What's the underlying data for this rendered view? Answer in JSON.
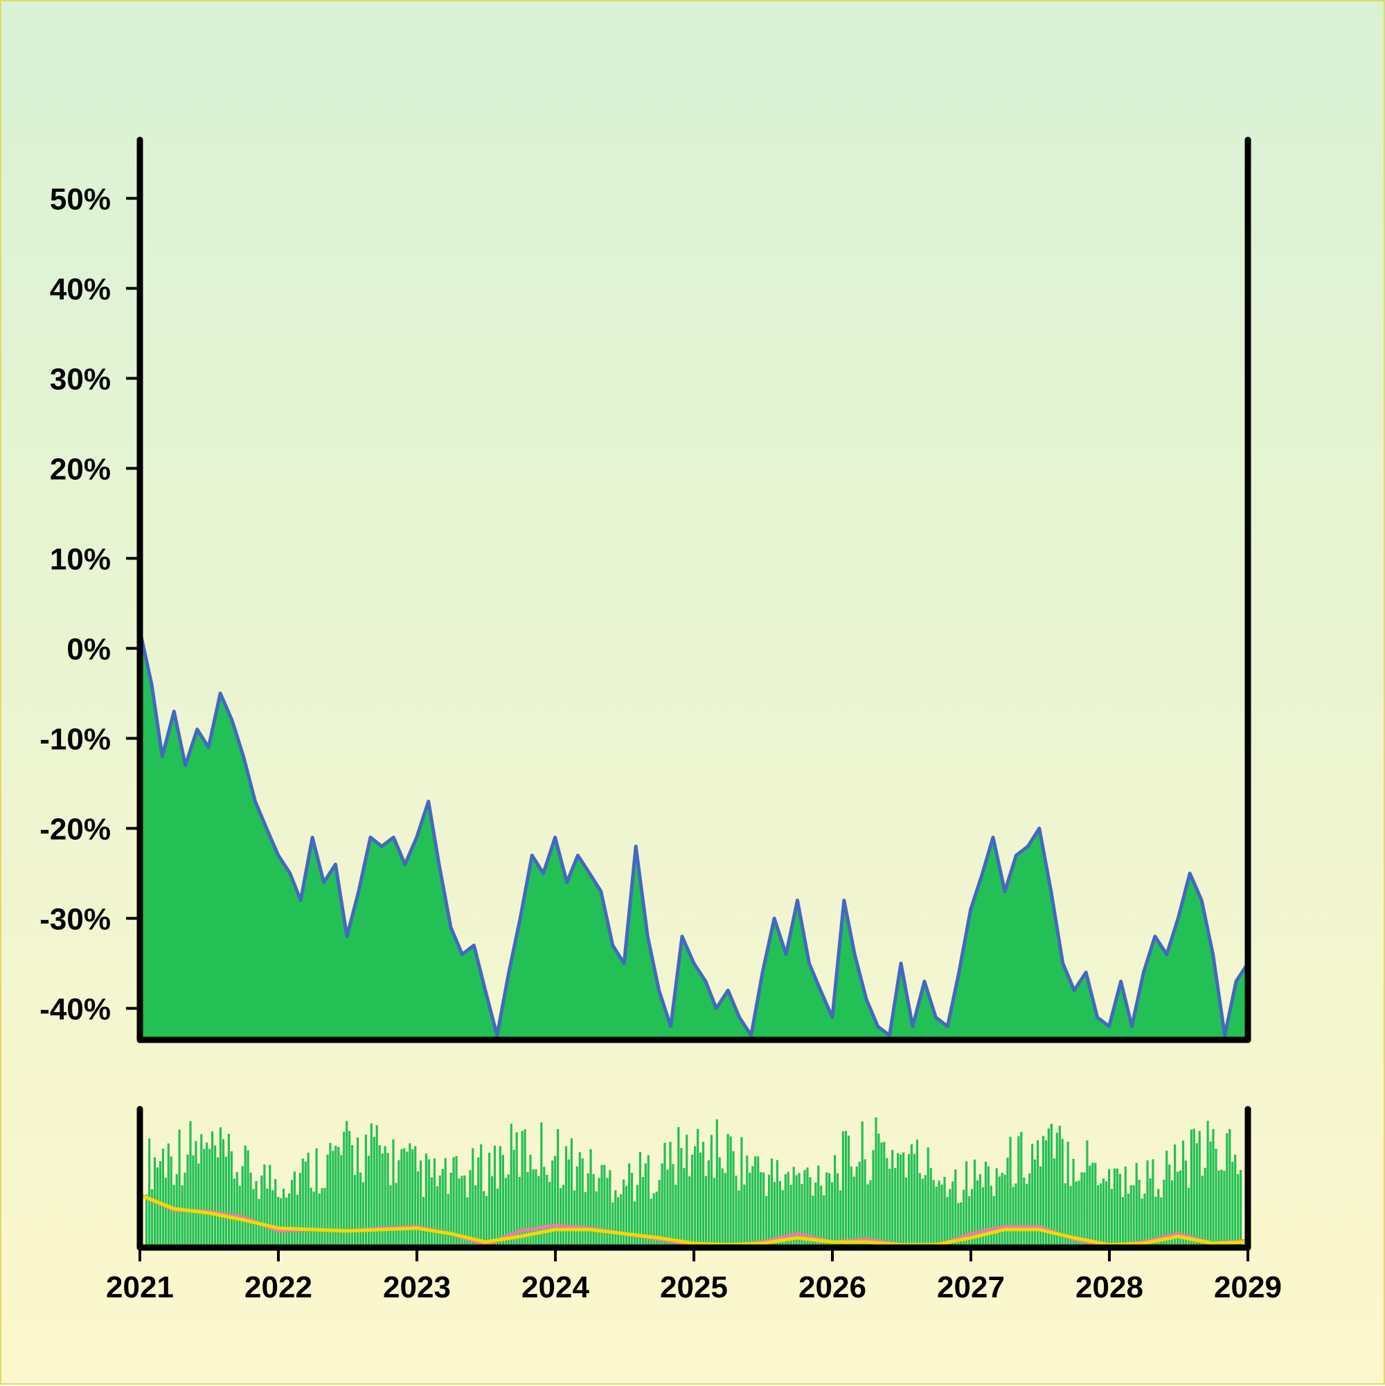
{
  "chart_data": {
    "type": "area",
    "title": "",
    "xlabel": "",
    "ylabel": "",
    "x_range": [
      "2021-01-01",
      "2029-01-01"
    ],
    "x_ticks": [
      "2021",
      "2022",
      "2023",
      "2024",
      "2025",
      "2026",
      "2027",
      "2028",
      "2029"
    ],
    "y_ticks": [
      {
        "value": 50,
        "label": "50%"
      },
      {
        "value": 40,
        "label": "40%"
      },
      {
        "value": 30,
        "label": "30%"
      },
      {
        "value": 20,
        "label": "20%"
      },
      {
        "value": 10,
        "label": "10%"
      },
      {
        "value": 0,
        "label": "0%"
      },
      {
        "value": -10,
        "label": "-10%"
      },
      {
        "value": -20,
        "label": "-20%"
      },
      {
        "value": -30,
        "label": "-30%"
      },
      {
        "value": -40,
        "label": "-40%"
      }
    ],
    "ylim": [
      -43.5,
      56.5
    ],
    "grid": false,
    "legend": "none",
    "colors": {
      "area_fill": "#22c055",
      "line": "#4468c0",
      "volume": "#22c055",
      "ma_fast": "#f07aa8",
      "ma_slow": "#f5d800",
      "axes": "#000000"
    },
    "series": [
      {
        "values": [
          [
            "2021-01-01",
            2
          ],
          [
            "2021-02-01",
            -4
          ],
          [
            "2021-03-01",
            -12
          ],
          [
            "2021-04-01",
            -7
          ],
          [
            "2021-05-01",
            -13
          ],
          [
            "2021-06-01",
            -9
          ],
          [
            "2021-07-01",
            -11
          ],
          [
            "2021-08-01",
            -5
          ],
          [
            "2021-09-01",
            -8
          ],
          [
            "2021-10-01",
            -12
          ],
          [
            "2021-11-01",
            -17
          ],
          [
            "2021-12-01",
            -20
          ],
          [
            "2022-01-01",
            -23
          ],
          [
            "2022-02-01",
            -25
          ],
          [
            "2022-03-01",
            -28
          ],
          [
            "2022-04-01",
            -21
          ],
          [
            "2022-05-01",
            -26
          ],
          [
            "2022-06-01",
            -24
          ],
          [
            "2022-07-01",
            -32
          ],
          [
            "2022-08-01",
            -27
          ],
          [
            "2022-09-01",
            -21
          ],
          [
            "2022-10-01",
            -22
          ],
          [
            "2022-11-01",
            -21
          ],
          [
            "2022-12-01",
            -24
          ],
          [
            "2023-01-01",
            -21
          ],
          [
            "2023-02-01",
            -17
          ],
          [
            "2023-03-01",
            -24
          ],
          [
            "2023-04-01",
            -31
          ],
          [
            "2023-05-01",
            -34
          ],
          [
            "2023-06-01",
            -33
          ],
          [
            "2023-07-01",
            -38
          ],
          [
            "2023-08-01",
            -43
          ],
          [
            "2023-09-01",
            -36
          ],
          [
            "2023-10-01",
            -30
          ],
          [
            "2023-11-01",
            -23
          ],
          [
            "2023-12-01",
            -25
          ],
          [
            "2024-01-01",
            -21
          ],
          [
            "2024-02-01",
            -26
          ],
          [
            "2024-03-01",
            -23
          ],
          [
            "2024-04-01",
            -25
          ],
          [
            "2024-05-01",
            -27
          ],
          [
            "2024-06-01",
            -33
          ],
          [
            "2024-07-01",
            -35
          ],
          [
            "2024-08-01",
            -22
          ],
          [
            "2024-09-01",
            -32
          ],
          [
            "2024-10-01",
            -38
          ],
          [
            "2024-11-01",
            -42
          ],
          [
            "2024-12-01",
            -32
          ],
          [
            "2025-01-01",
            -35
          ],
          [
            "2025-02-01",
            -37
          ],
          [
            "2025-03-01",
            -40
          ],
          [
            "2025-04-01",
            -38
          ],
          [
            "2025-05-01",
            -41
          ],
          [
            "2025-06-01",
            -43
          ],
          [
            "2025-07-01",
            -36
          ],
          [
            "2025-08-01",
            -30
          ],
          [
            "2025-09-01",
            -34
          ],
          [
            "2025-10-01",
            -28
          ],
          [
            "2025-11-01",
            -35
          ],
          [
            "2025-12-01",
            -38
          ],
          [
            "2026-01-01",
            -41
          ],
          [
            "2026-02-01",
            -28
          ],
          [
            "2026-03-01",
            -34
          ],
          [
            "2026-04-01",
            -39
          ],
          [
            "2026-05-01",
            -42
          ],
          [
            "2026-06-01",
            -43
          ],
          [
            "2026-07-01",
            -35
          ],
          [
            "2026-08-01",
            -42
          ],
          [
            "2026-09-01",
            -37
          ],
          [
            "2026-10-01",
            -41
          ],
          [
            "2026-11-01",
            -42
          ],
          [
            "2026-12-01",
            -36
          ],
          [
            "2027-01-01",
            -29
          ],
          [
            "2027-02-01",
            -25
          ],
          [
            "2027-03-01",
            -21
          ],
          [
            "2027-04-01",
            -27
          ],
          [
            "2027-05-01",
            -23
          ],
          [
            "2027-06-01",
            -22
          ],
          [
            "2027-07-01",
            -20
          ],
          [
            "2027-08-01",
            -27
          ],
          [
            "2027-09-01",
            -35
          ],
          [
            "2027-10-01",
            -38
          ],
          [
            "2027-11-01",
            -36
          ],
          [
            "2027-12-01",
            -41
          ],
          [
            "2028-01-01",
            -42
          ],
          [
            "2028-02-01",
            -37
          ],
          [
            "2028-03-01",
            -42
          ],
          [
            "2028-04-01",
            -36
          ],
          [
            "2028-05-01",
            -32
          ],
          [
            "2028-06-01",
            -34
          ],
          [
            "2028-07-01",
            -30
          ],
          [
            "2028-08-01",
            -25
          ],
          [
            "2028-09-01",
            -28
          ],
          [
            "2028-10-01",
            -34
          ],
          [
            "2028-11-01",
            -43
          ],
          [
            "2028-12-01",
            -37
          ],
          [
            "2029-01-01",
            -35
          ]
        ]
      }
    ],
    "volume_panel": {
      "type": "bar",
      "ma_fast": [
        [
          "2021-01-01",
          0.38
        ],
        [
          "2021-04-01",
          0.27
        ],
        [
          "2021-07-01",
          0.26
        ],
        [
          "2021-10-01",
          0.22
        ],
        [
          "2022-01-01",
          0.12
        ],
        [
          "2022-04-01",
          0.13
        ],
        [
          "2022-07-01",
          0.12
        ],
        [
          "2022-10-01",
          0.14
        ],
        [
          "2023-01-01",
          0.15
        ],
        [
          "2023-04-01",
          0.1
        ],
        [
          "2023-07-01",
          0.02
        ],
        [
          "2023-10-01",
          0.12
        ],
        [
          "2024-01-01",
          0.16
        ],
        [
          "2024-04-01",
          0.14
        ],
        [
          "2024-07-01",
          0.1
        ],
        [
          "2024-10-01",
          0.06
        ],
        [
          "2025-01-01",
          0.02
        ],
        [
          "2025-04-01",
          0.01
        ],
        [
          "2025-07-01",
          0.04
        ],
        [
          "2025-10-01",
          0.1
        ],
        [
          "2026-01-01",
          0.04
        ],
        [
          "2026-04-01",
          0.06
        ],
        [
          "2026-07-01",
          0.02
        ],
        [
          "2026-10-01",
          0.01
        ],
        [
          "2027-01-01",
          0.1
        ],
        [
          "2027-04-01",
          0.15
        ],
        [
          "2027-07-01",
          0.15
        ],
        [
          "2027-10-01",
          0.06
        ],
        [
          "2028-01-01",
          0.01
        ],
        [
          "2028-04-01",
          0.04
        ],
        [
          "2028-07-01",
          0.1
        ],
        [
          "2028-10-01",
          0.03
        ],
        [
          "2029-01-01",
          0.05
        ]
      ],
      "ma_slow": [
        [
          "2021-01-01",
          0.38
        ],
        [
          "2021-04-01",
          0.28
        ],
        [
          "2021-07-01",
          0.25
        ],
        [
          "2021-10-01",
          0.2
        ],
        [
          "2022-01-01",
          0.14
        ],
        [
          "2022-04-01",
          0.13
        ],
        [
          "2022-07-01",
          0.12
        ],
        [
          "2022-10-01",
          0.13
        ],
        [
          "2023-01-01",
          0.14
        ],
        [
          "2023-04-01",
          0.1
        ],
        [
          "2023-07-01",
          0.04
        ],
        [
          "2023-10-01",
          0.08
        ],
        [
          "2024-01-01",
          0.13
        ],
        [
          "2024-04-01",
          0.13
        ],
        [
          "2024-07-01",
          0.1
        ],
        [
          "2024-10-01",
          0.07
        ],
        [
          "2025-01-01",
          0.03
        ],
        [
          "2025-04-01",
          0.02
        ],
        [
          "2025-07-01",
          0.03
        ],
        [
          "2025-10-01",
          0.07
        ],
        [
          "2026-01-01",
          0.04
        ],
        [
          "2026-04-01",
          0.04
        ],
        [
          "2026-07-01",
          0.02
        ],
        [
          "2026-10-01",
          0.02
        ],
        [
          "2027-01-01",
          0.07
        ],
        [
          "2027-04-01",
          0.13
        ],
        [
          "2027-07-01",
          0.13
        ],
        [
          "2027-10-01",
          0.07
        ],
        [
          "2028-01-01",
          0.02
        ],
        [
          "2028-04-01",
          0.03
        ],
        [
          "2028-07-01",
          0.08
        ],
        [
          "2028-10-01",
          0.03
        ],
        [
          "2029-01-01",
          0.04
        ]
      ]
    }
  }
}
